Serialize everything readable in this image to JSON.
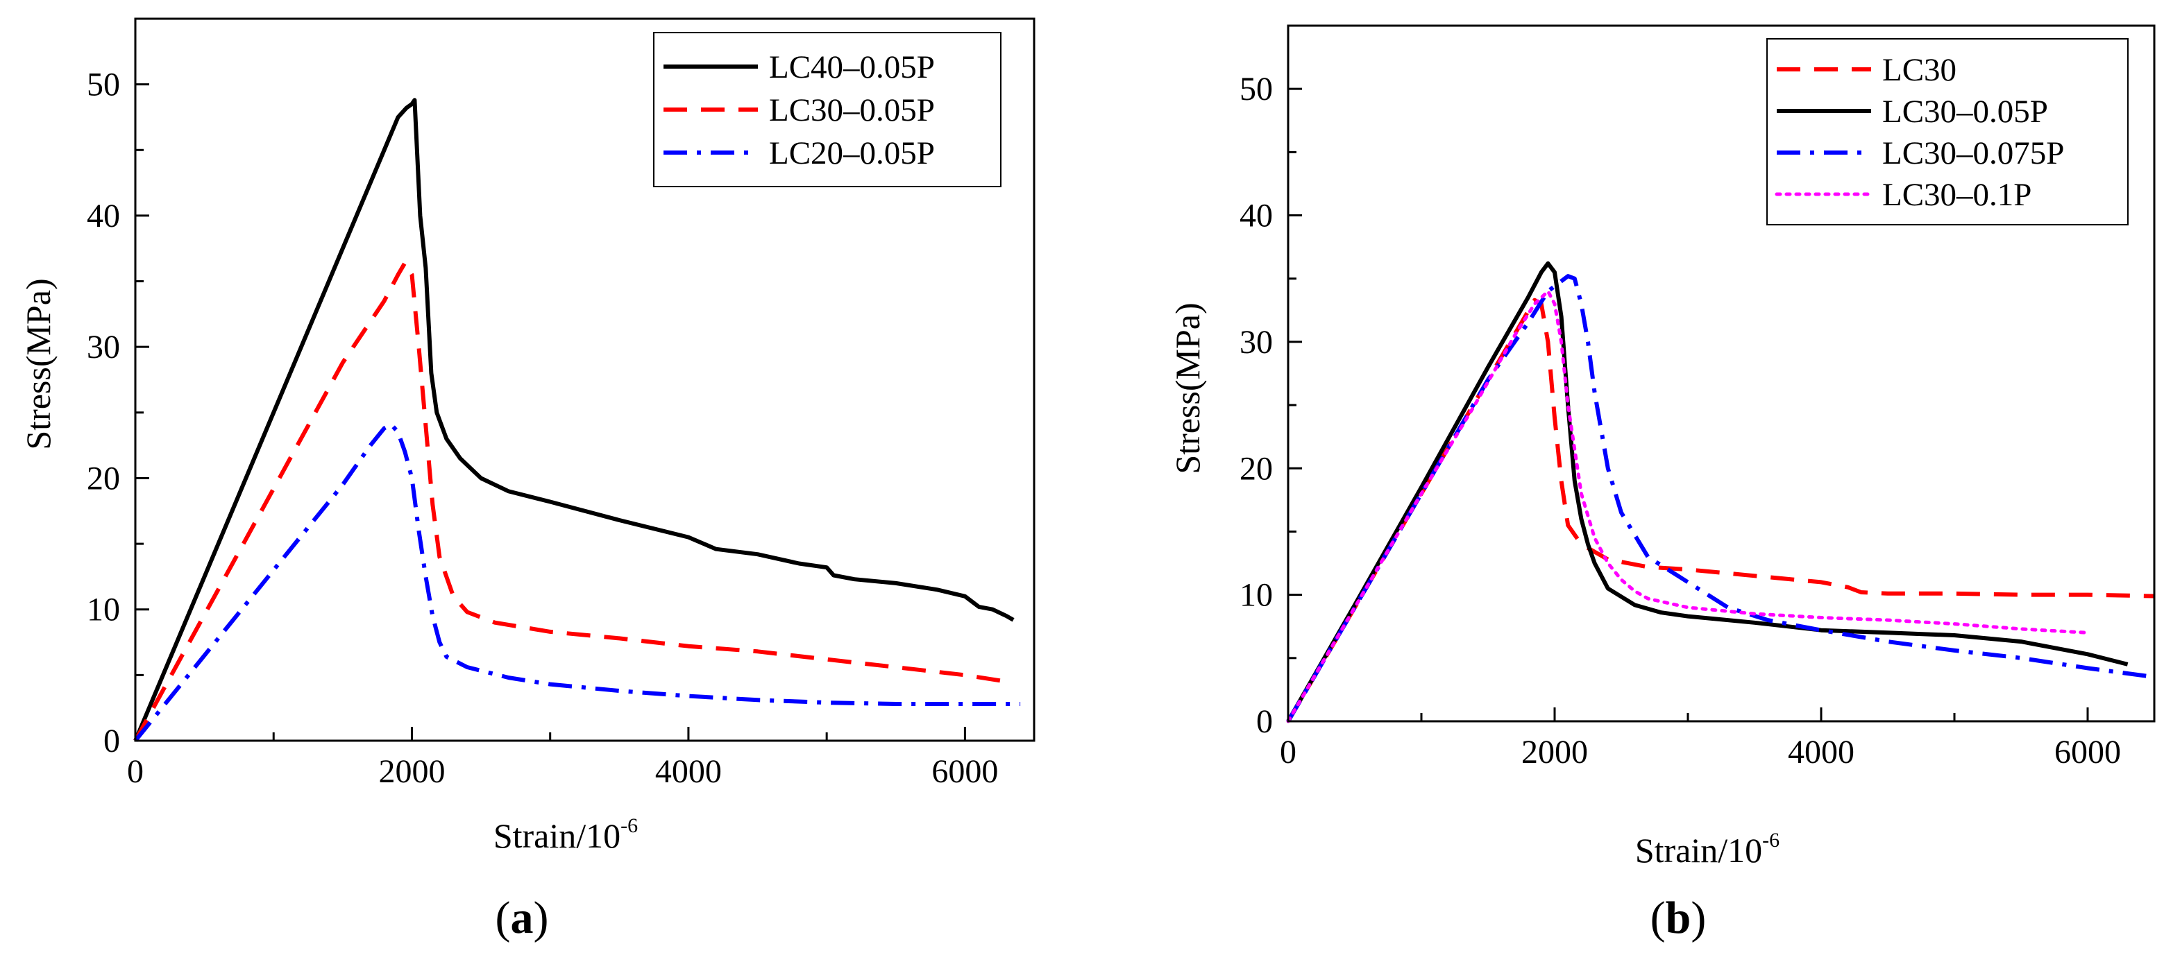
{
  "chart_data": [
    {
      "type": "line",
      "panel_label": "a",
      "caption_open": "(",
      "caption_close": ")",
      "xlabel": "Strain/10",
      "xlabel_exponent": "-6",
      "ylabel": "Stress(MPa)",
      "xlim": [
        0,
        6500
      ],
      "ylim": [
        0,
        55
      ],
      "xticks": [
        0,
        2000,
        4000,
        6000
      ],
      "yticks": [
        0,
        10,
        20,
        30,
        40,
        50
      ],
      "legend_position": "top-right",
      "series": [
        {
          "name": "LC40–0.05P",
          "color": "#000000",
          "style": "solid",
          "x": [
            0,
            500,
            1000,
            1500,
            1800,
            1900,
            1960,
            2000,
            2020,
            2060,
            2100,
            2140,
            2180,
            2250,
            2350,
            2500,
            2700,
            3000,
            3500,
            4000,
            4200,
            4500,
            4800,
            5000,
            5050,
            5200,
            5500,
            5800,
            6000,
            6100,
            6200,
            6300,
            6350
          ],
          "y": [
            0,
            12.5,
            25,
            37.5,
            45,
            47.5,
            48.2,
            48.5,
            48.8,
            40,
            36,
            28,
            25,
            23,
            21.5,
            20,
            19,
            18.2,
            16.8,
            15.5,
            14.6,
            14.2,
            13.5,
            13.2,
            12.6,
            12.3,
            12,
            11.5,
            11,
            10.2,
            10,
            9.5,
            9.2
          ]
        },
        {
          "name": "LC30–0.05P",
          "color": "#ff0000",
          "style": "dashed",
          "x": [
            0,
            500,
            1000,
            1500,
            1800,
            1900,
            1950,
            2000,
            2050,
            2100,
            2150,
            2200,
            2300,
            2400,
            2600,
            3000,
            3500,
            4000,
            4500,
            5000,
            5500,
            6000,
            6300
          ],
          "y": [
            0,
            9.6,
            19.2,
            28.8,
            33.5,
            35.5,
            36.4,
            35.5,
            30,
            24,
            18,
            14,
            11,
            9.8,
            9,
            8.3,
            7.8,
            7.2,
            6.8,
            6.2,
            5.6,
            5,
            4.5
          ]
        },
        {
          "name": "LC20–0.05P",
          "color": "#0000ff",
          "style": "dashdot",
          "x": [
            0,
            500,
            1000,
            1500,
            1700,
            1800,
            1850,
            1900,
            1950,
            2000,
            2050,
            2100,
            2150,
            2200,
            2250,
            2400,
            2700,
            3000,
            3500,
            4000,
            4500,
            5000,
            5500,
            6000,
            6400
          ],
          "y": [
            0,
            6.5,
            13,
            19.5,
            22.5,
            23.8,
            24.1,
            23.5,
            22,
            20,
            16,
            12.5,
            9.5,
            7.5,
            6.4,
            5.6,
            4.8,
            4.3,
            3.8,
            3.4,
            3.1,
            2.9,
            2.8,
            2.8,
            2.8
          ]
        }
      ]
    },
    {
      "type": "line",
      "panel_label": "b",
      "caption_open": "(",
      "caption_close": ")",
      "xlabel": "Strain/10",
      "xlabel_exponent": "-6",
      "ylabel": "Stress(MPa)",
      "xlim": [
        0,
        6500
      ],
      "ylim": [
        0,
        55
      ],
      "xticks": [
        0,
        2000,
        4000,
        6000
      ],
      "yticks": [
        0,
        10,
        20,
        30,
        40,
        50
      ],
      "legend_position": "top-right",
      "series": [
        {
          "name": "LC30",
          "color": "#ff0000",
          "style": "dashed",
          "x": [
            0,
            500,
            1000,
            1500,
            1750,
            1850,
            1900,
            1950,
            2000,
            2050,
            2100,
            2200,
            2400,
            2700,
            3000,
            3500,
            4000,
            4200,
            4300,
            4500,
            5000,
            5500,
            6000,
            6500
          ],
          "y": [
            0,
            9,
            18,
            27,
            31.5,
            33.3,
            33,
            30,
            24,
            19,
            15.5,
            14,
            12.8,
            12.2,
            12,
            11.5,
            11,
            10.6,
            10.2,
            10.1,
            10.1,
            10,
            10,
            9.9
          ]
        },
        {
          "name": "LC30–0.05P",
          "color": "#000000",
          "style": "solid",
          "x": [
            0,
            500,
            1000,
            1500,
            1800,
            1900,
            1950,
            2000,
            2050,
            2100,
            2150,
            2200,
            2250,
            2300,
            2400,
            2600,
            2800,
            3000,
            3500,
            4000,
            4500,
            5000,
            5500,
            6000,
            6300
          ],
          "y": [
            0,
            9.2,
            18.5,
            28,
            33.5,
            35.5,
            36.2,
            35.5,
            32,
            25,
            19,
            16,
            14,
            12.5,
            10.5,
            9.2,
            8.6,
            8.3,
            7.8,
            7.2,
            7,
            6.8,
            6.3,
            5.3,
            4.5
          ]
        },
        {
          "name": "LC30–0.075P",
          "color": "#0000ff",
          "style": "dashdot",
          "x": [
            0,
            500,
            1000,
            1500,
            1800,
            1950,
            2100,
            2150,
            2200,
            2250,
            2300,
            2400,
            2500,
            2700,
            3000,
            3300,
            3600,
            4000,
            4500,
            5000,
            5500,
            6000,
            6500
          ],
          "y": [
            0,
            9,
            18,
            27,
            31.5,
            34,
            35.2,
            35,
            33,
            30,
            26,
            20,
            16.5,
            13,
            11,
            9,
            8,
            7.2,
            6.3,
            5.6,
            5,
            4.2,
            3.5
          ]
        },
        {
          "name": "LC30–0.1P",
          "color": "#ff00ff",
          "style": "dotted",
          "x": [
            0,
            500,
            1000,
            1400,
            1700,
            1850,
            1950,
            2000,
            2050,
            2100,
            2200,
            2300,
            2400,
            2500,
            2600,
            2700,
            3000,
            3500,
            4000,
            4500,
            5000,
            5500,
            6000
          ],
          "y": [
            0,
            9,
            18,
            25,
            30.5,
            33,
            34,
            33,
            30,
            25,
            18,
            14.5,
            12.5,
            11.2,
            10.3,
            9.7,
            9,
            8.5,
            8.2,
            8,
            7.7,
            7.3,
            7
          ]
        }
      ]
    }
  ]
}
